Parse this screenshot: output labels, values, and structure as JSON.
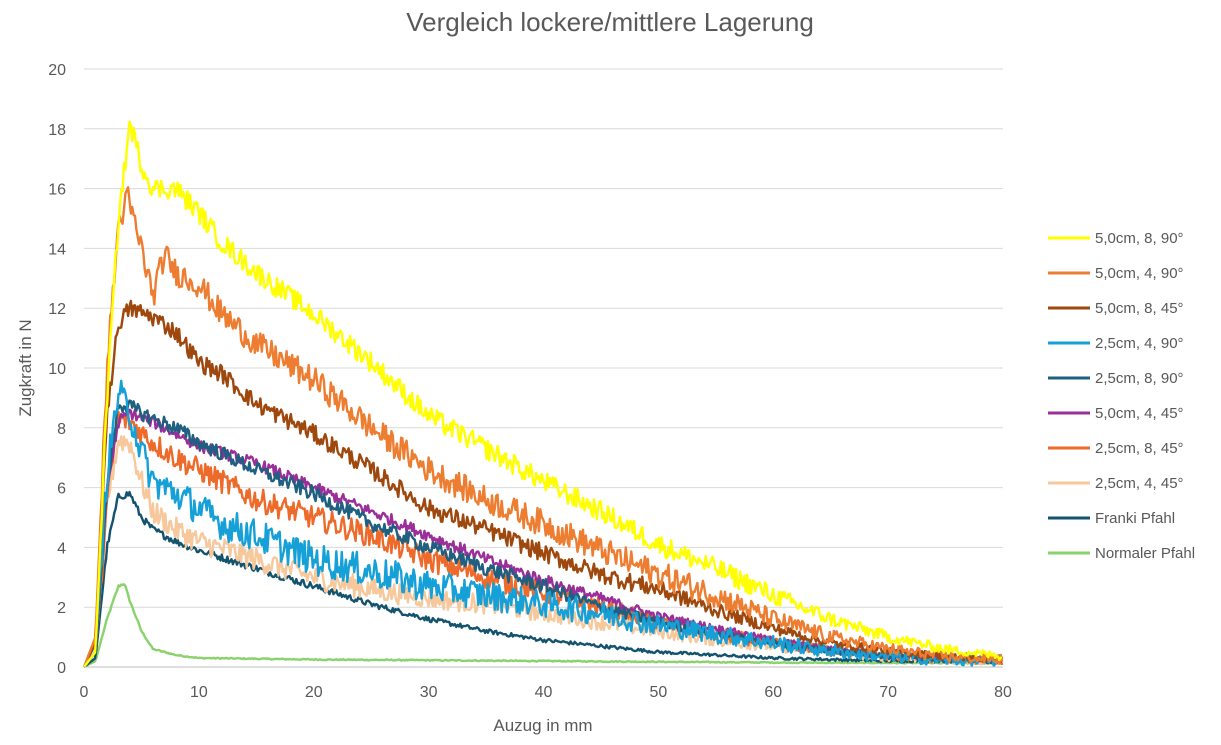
{
  "chart_data": {
    "type": "line",
    "title": "Vergleich lockere/mittlere Lagerung",
    "xlabel": "Auzug in mm",
    "ylabel": "Zugkraft in N",
    "xlim": [
      0,
      80
    ],
    "ylim": [
      0,
      20
    ],
    "xticks": [
      0,
      10,
      20,
      30,
      40,
      50,
      60,
      70,
      80
    ],
    "yticks": [
      0,
      2,
      4,
      6,
      8,
      10,
      12,
      14,
      16,
      18,
      20
    ],
    "grid": "horizontal",
    "legend_position": "right",
    "series": [
      {
        "name": "5,0cm, 8, 90°",
        "color": "#ffff00",
        "noise": 0.35,
        "points": [
          [
            0,
            0
          ],
          [
            1,
            0.5
          ],
          [
            2,
            9
          ],
          [
            3,
            15
          ],
          [
            4,
            18.2
          ],
          [
            5,
            16.8
          ],
          [
            6,
            16
          ],
          [
            8,
            16
          ],
          [
            10,
            15.2
          ],
          [
            12,
            14.2
          ],
          [
            15,
            13.2
          ],
          [
            20,
            11.8
          ],
          [
            25,
            10.2
          ],
          [
            30,
            8.4
          ],
          [
            35,
            7.3
          ],
          [
            40,
            6.2
          ],
          [
            45,
            5.2
          ],
          [
            50,
            4.1
          ],
          [
            55,
            3.3
          ],
          [
            60,
            2.4
          ],
          [
            65,
            1.6
          ],
          [
            70,
            1.0
          ],
          [
            75,
            0.6
          ],
          [
            80,
            0.35
          ]
        ]
      },
      {
        "name": "5,0cm, 4, 90°",
        "color": "#ed7d31",
        "noise": 0.45,
        "points": [
          [
            0,
            0
          ],
          [
            1,
            1
          ],
          [
            2,
            10
          ],
          [
            3,
            14.8
          ],
          [
            3.8,
            15.7
          ],
          [
            5,
            14
          ],
          [
            6,
            12.4
          ],
          [
            7,
            13.8
          ],
          [
            8,
            13.2
          ],
          [
            10,
            12.8
          ],
          [
            12,
            11.8
          ],
          [
            15,
            10.8
          ],
          [
            20,
            9.6
          ],
          [
            25,
            8.0
          ],
          [
            30,
            6.6
          ],
          [
            35,
            5.6
          ],
          [
            40,
            4.8
          ],
          [
            45,
            3.9
          ],
          [
            50,
            3.1
          ],
          [
            55,
            2.4
          ],
          [
            60,
            1.6
          ],
          [
            65,
            1.0
          ],
          [
            70,
            0.6
          ],
          [
            75,
            0.35
          ],
          [
            80,
            0.25
          ]
        ]
      },
      {
        "name": "5,0cm, 8, 45°",
        "color": "#9e480e",
        "noise": 0.3,
        "points": [
          [
            0,
            0
          ],
          [
            1,
            0.8
          ],
          [
            2,
            8.5
          ],
          [
            3,
            11.5
          ],
          [
            4,
            12
          ],
          [
            6,
            11.7
          ],
          [
            8,
            11.2
          ],
          [
            10,
            10.2
          ],
          [
            12,
            9.8
          ],
          [
            15,
            8.8
          ],
          [
            20,
            7.8
          ],
          [
            25,
            6.6
          ],
          [
            30,
            5.3
          ],
          [
            35,
            4.6
          ],
          [
            40,
            3.8
          ],
          [
            45,
            3.1
          ],
          [
            50,
            2.6
          ],
          [
            55,
            1.9
          ],
          [
            60,
            1.3
          ],
          [
            65,
            0.8
          ],
          [
            70,
            0.55
          ],
          [
            75,
            0.35
          ],
          [
            80,
            0.25
          ]
        ]
      },
      {
        "name": "2,5cm, 4, 90°",
        "color": "#16a0d8",
        "noise": 0.55,
        "points": [
          [
            0,
            0
          ],
          [
            1,
            0.8
          ],
          [
            2,
            6.5
          ],
          [
            3,
            9.2
          ],
          [
            4,
            8.5
          ],
          [
            5,
            7.2
          ],
          [
            6,
            6.2
          ],
          [
            8,
            5.8
          ],
          [
            10,
            5.3
          ],
          [
            12,
            4.8
          ],
          [
            15,
            4.4
          ],
          [
            20,
            3.6
          ],
          [
            25,
            3.2
          ],
          [
            30,
            2.7
          ],
          [
            35,
            2.4
          ],
          [
            40,
            2.1
          ],
          [
            45,
            1.8
          ],
          [
            50,
            1.4
          ],
          [
            55,
            1.1
          ],
          [
            60,
            0.8
          ],
          [
            65,
            0.55
          ],
          [
            70,
            0.35
          ],
          [
            75,
            0.25
          ],
          [
            80,
            0.2
          ]
        ]
      },
      {
        "name": "2,5cm, 8, 90°",
        "color": "#1f5f7f",
        "noise": 0.25,
        "points": [
          [
            0,
            0
          ],
          [
            1,
            0.5
          ],
          [
            2,
            6
          ],
          [
            3,
            8.8
          ],
          [
            4,
            8.7
          ],
          [
            6,
            8.3
          ],
          [
            8,
            8.0
          ],
          [
            10,
            7.5
          ],
          [
            15,
            6.6
          ],
          [
            20,
            5.8
          ],
          [
            25,
            4.8
          ],
          [
            30,
            4.0
          ],
          [
            35,
            3.3
          ],
          [
            40,
            2.7
          ],
          [
            45,
            2.0
          ],
          [
            50,
            1.5
          ],
          [
            55,
            1.1
          ],
          [
            60,
            0.8
          ],
          [
            65,
            0.55
          ],
          [
            70,
            0.35
          ],
          [
            75,
            0.25
          ],
          [
            80,
            0.2
          ]
        ]
      },
      {
        "name": "5,0cm, 4, 45°",
        "color": "#9a2f9a",
        "noise": 0.2,
        "points": [
          [
            0,
            0
          ],
          [
            1,
            0.5
          ],
          [
            2,
            6
          ],
          [
            3,
            8.2
          ],
          [
            4,
            8.5
          ],
          [
            6,
            8.2
          ],
          [
            8,
            7.8
          ],
          [
            10,
            7.4
          ],
          [
            15,
            6.8
          ],
          [
            20,
            6.0
          ],
          [
            25,
            5.2
          ],
          [
            30,
            4.4
          ],
          [
            35,
            3.6
          ],
          [
            40,
            2.9
          ],
          [
            45,
            2.3
          ],
          [
            50,
            1.7
          ],
          [
            55,
            1.3
          ],
          [
            60,
            0.9
          ],
          [
            65,
            0.6
          ],
          [
            70,
            0.4
          ],
          [
            75,
            0.3
          ],
          [
            80,
            0.22
          ]
        ]
      },
      {
        "name": "2,5cm, 8, 45°",
        "color": "#ee6a2a",
        "noise": 0.4,
        "points": [
          [
            0,
            0
          ],
          [
            1,
            0.5
          ],
          [
            2,
            5.5
          ],
          [
            3,
            8.3
          ],
          [
            4,
            8.2
          ],
          [
            6,
            7.5
          ],
          [
            8,
            7.0
          ],
          [
            10,
            6.6
          ],
          [
            15,
            5.6
          ],
          [
            20,
            5.0
          ],
          [
            25,
            4.4
          ],
          [
            30,
            3.6
          ],
          [
            35,
            3.0
          ],
          [
            40,
            2.5
          ],
          [
            45,
            2.0
          ],
          [
            50,
            1.5
          ],
          [
            55,
            1.1
          ],
          [
            60,
            0.8
          ],
          [
            65,
            0.55
          ],
          [
            70,
            0.38
          ],
          [
            75,
            0.28
          ],
          [
            80,
            0.2
          ]
        ]
      },
      {
        "name": "2,5cm, 4, 45°",
        "color": "#f7c89c",
        "noise": 0.4,
        "points": [
          [
            0,
            0
          ],
          [
            1,
            0.5
          ],
          [
            2,
            5.5
          ],
          [
            3,
            7.6
          ],
          [
            4,
            7.5
          ],
          [
            5,
            6.2
          ],
          [
            6,
            5.2
          ],
          [
            8,
            4.6
          ],
          [
            10,
            4.2
          ],
          [
            15,
            3.6
          ],
          [
            20,
            3.0
          ],
          [
            25,
            2.6
          ],
          [
            30,
            2.3
          ],
          [
            35,
            2.1
          ],
          [
            40,
            1.8
          ],
          [
            45,
            1.5
          ],
          [
            50,
            1.2
          ],
          [
            55,
            0.9
          ],
          [
            60,
            0.7
          ],
          [
            65,
            0.5
          ],
          [
            70,
            0.35
          ],
          [
            75,
            0.25
          ],
          [
            80,
            0.2
          ]
        ]
      },
      {
        "name": "Franki Pfahl",
        "color": "#14536e",
        "noise": 0.12,
        "points": [
          [
            0,
            0
          ],
          [
            1,
            0.3
          ],
          [
            2,
            4
          ],
          [
            3,
            5.7
          ],
          [
            4,
            5.8
          ],
          [
            5,
            5.0
          ],
          [
            6,
            4.6
          ],
          [
            8,
            4.2
          ],
          [
            10,
            3.9
          ],
          [
            15,
            3.3
          ],
          [
            20,
            2.7
          ],
          [
            25,
            2.1
          ],
          [
            30,
            1.6
          ],
          [
            35,
            1.2
          ],
          [
            40,
            0.9
          ],
          [
            45,
            0.7
          ],
          [
            50,
            0.5
          ],
          [
            55,
            0.4
          ],
          [
            60,
            0.3
          ],
          [
            65,
            0.25
          ],
          [
            70,
            0.2
          ],
          [
            75,
            0.2
          ],
          [
            80,
            0.2
          ]
        ]
      },
      {
        "name": "Normaler Pfahl",
        "color": "#8ad26b",
        "noise": 0.05,
        "points": [
          [
            0,
            0
          ],
          [
            1,
            0.2
          ],
          [
            2,
            1.6
          ],
          [
            3,
            2.7
          ],
          [
            3.5,
            2.8
          ],
          [
            4,
            2.2
          ],
          [
            5,
            1.2
          ],
          [
            6,
            0.6
          ],
          [
            8,
            0.4
          ],
          [
            10,
            0.3
          ],
          [
            20,
            0.25
          ],
          [
            40,
            0.2
          ],
          [
            60,
            0.15
          ],
          [
            80,
            0.12
          ]
        ]
      }
    ]
  }
}
